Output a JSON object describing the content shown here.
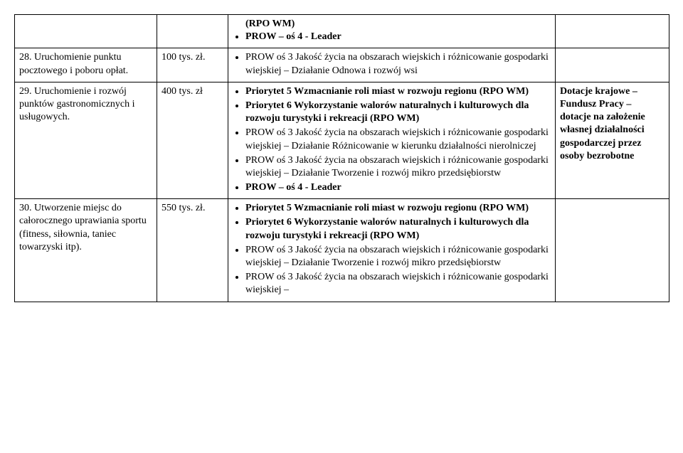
{
  "rows": [
    {
      "col1": "",
      "col2": "",
      "col3_pre": "(RPO WM)",
      "col3_items": [
        {
          "text": "PROW – oś 4 - Leader",
          "bold": true
        }
      ],
      "col4": ""
    },
    {
      "col1": "28. Uruchomienie punktu pocztowego i poboru opłat.",
      "col2": "100 tys. zł.",
      "col3_items": [
        {
          "text": "PROW oś 3 Jakość życia na obszarach wiejskich i różnicowanie gospodarki wiejskiej – Działanie Odnowa i rozwój wsi",
          "bold": false
        }
      ],
      "col4": ""
    },
    {
      "col1": "29. Uruchomienie i rozwój punktów gastronomicznych i usługowych.",
      "col2": "400 tys. zł",
      "col3_items": [
        {
          "text": "Priorytet 5 Wzmacnianie roli miast w rozwoju regionu (RPO WM)",
          "bold": true
        },
        {
          "text": "Priorytet 6 Wykorzystanie walorów naturalnych i kulturowych dla rozwoju turystyki i rekreacji (RPO WM)",
          "bold": true
        },
        {
          "text": "PROW oś 3 Jakość życia na obszarach wiejskich i różnicowanie gospodarki wiejskiej – Działanie Różnicowanie w kierunku działalności nierolniczej",
          "bold": false
        },
        {
          "text": "PROW oś 3 Jakość życia na obszarach wiejskich i różnicowanie gospodarki wiejskiej – Działanie Tworzenie i rozwój mikro przedsiębiorstw",
          "bold": false
        },
        {
          "text": "PROW – oś 4 - Leader",
          "bold": true
        }
      ],
      "col4": "Dotacje krajowe – Fundusz Pracy – dotacje na założenie własnej działalności gospodarczej przez osoby bezrobotne",
      "col4_bold": true
    },
    {
      "col1": "30. Utworzenie miejsc do całorocznego uprawiania sportu (fitness, siłownia, taniec towarzyski itp).",
      "col2": "550 tys. zł.",
      "col3_items": [
        {
          "text": "Priorytet 5 Wzmacnianie roli miast w rozwoju regionu (RPO WM)",
          "bold": true
        },
        {
          "text": "Priorytet 6 Wykorzystanie walorów naturalnych i kulturowych dla rozwoju turystyki i rekreacji (RPO WM)",
          "bold": true
        },
        {
          "text": "PROW oś 3 Jakość życia na obszarach wiejskich i różnicowanie gospodarki wiejskiej – Działanie Tworzenie i rozwój mikro przedsiębiorstw",
          "bold": false
        },
        {
          "text": "PROW oś 3 Jakość życia na obszarach wiejskich i różnicowanie gospodarki wiejskiej –",
          "bold": false
        }
      ],
      "col4": ""
    }
  ]
}
